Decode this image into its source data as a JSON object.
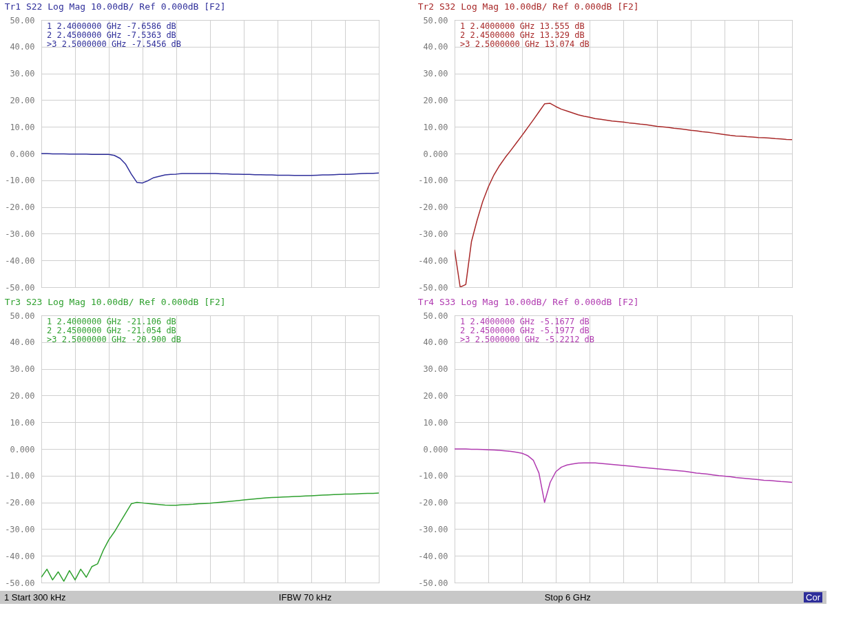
{
  "chart_data": [
    {
      "type": "line",
      "title": "Tr1 S22 Log Mag 10.00dB/ Ref 0.000dB [F2]",
      "categories": [
        null,
        null,
        null,
        null,
        null,
        null,
        null,
        null,
        null,
        null,
        null,
        null,
        null,
        null,
        null,
        null,
        null,
        null,
        null,
        null,
        null,
        null,
        null,
        null,
        null,
        null,
        null,
        null,
        null,
        null,
        null,
        null,
        null,
        null,
        null,
        null,
        null,
        null,
        null,
        null,
        null,
        null,
        null,
        null,
        null,
        null,
        null,
        null,
        null,
        null,
        null,
        null,
        null,
        null,
        null,
        null,
        null,
        null,
        null,
        null,
        null
      ],
      "ylim": [
        -50,
        50
      ],
      "yticks": [
        {
          "value": 50,
          "label": "50.00"
        },
        {
          "value": 40,
          "label": "40.00"
        },
        {
          "value": 30,
          "label": "30.00"
        },
        {
          "value": 20,
          "label": "20.00"
        },
        {
          "value": 10,
          "label": "10.00"
        },
        {
          "value": 0,
          "label": "0.000"
        },
        {
          "value": -10,
          "label": "-10.00"
        },
        {
          "value": -20,
          "label": "-20.00"
        },
        {
          "value": -30,
          "label": "-30.00"
        },
        {
          "value": -40,
          "label": "-40.00"
        },
        {
          "value": -50,
          "label": "-50.00"
        }
      ],
      "tick_labels": "y",
      "grid": true,
      "annotations": [
        " 1  2.4000000 GHz -7.6586 dB",
        " 2  2.4500000 GHz -7.5363 dB",
        ">3  2.5000000 GHz -7.5456 dB"
      ],
      "series": [
        {
          "color": "#2e2e9a",
          "values": [
            0,
            0,
            -0.1,
            -0.1,
            -0.1,
            -0.2,
            -0.2,
            -0.2,
            -0.2,
            -0.3,
            -0.3,
            -0.3,
            -0.3,
            -0.7,
            -1.8,
            -4,
            -7.7,
            -10.8,
            -11,
            -10.1,
            -9,
            -8.5,
            -8,
            -7.8,
            -7.7,
            -7.5,
            -7.5,
            -7.5,
            -7.5,
            -7.5,
            -7.5,
            -7.5,
            -7.6,
            -7.6,
            -7.7,
            -7.7,
            -7.8,
            -7.8,
            -7.9,
            -7.9,
            -8,
            -8,
            -8.1,
            -8.1,
            -8.1,
            -8.2,
            -8.2,
            -8.2,
            -8.2,
            -8.1,
            -8,
            -8,
            -7.9,
            -7.8,
            -7.8,
            -7.7,
            -7.6,
            -7.5,
            -7.4,
            -7.4,
            -7.3
          ]
        }
      ]
    },
    {
      "type": "line",
      "title": "Tr2 S32 Log Mag 10.00dB/ Ref 0.000dB [F2]",
      "categories": [
        null,
        null,
        null,
        null,
        null,
        null,
        null,
        null,
        null,
        null,
        null,
        null,
        null,
        null,
        null,
        null,
        null,
        null,
        null,
        null,
        null,
        null,
        null,
        null,
        null,
        null,
        null,
        null,
        null,
        null,
        null,
        null,
        null,
        null,
        null,
        null,
        null,
        null,
        null,
        null,
        null,
        null,
        null,
        null,
        null,
        null,
        null,
        null,
        null,
        null,
        null,
        null,
        null,
        null,
        null,
        null,
        null,
        null,
        null,
        null,
        null
      ],
      "ylim": [
        -50,
        50
      ],
      "yticks": [
        {
          "value": 50,
          "label": "50.00"
        },
        {
          "value": 40,
          "label": "40.00"
        },
        {
          "value": 30,
          "label": "30.00"
        },
        {
          "value": 20,
          "label": "20.00"
        },
        {
          "value": 10,
          "label": "10.00"
        },
        {
          "value": 0,
          "label": "0.000"
        },
        {
          "value": -10,
          "label": "-10.00"
        },
        {
          "value": -20,
          "label": "-20.00"
        },
        {
          "value": -30,
          "label": "-30.00"
        },
        {
          "value": -40,
          "label": "-40.00"
        },
        {
          "value": -50,
          "label": "-50.00"
        }
      ],
      "tick_labels": "y",
      "grid": true,
      "annotations": [
        " 1  2.4000000 GHz  13.555 dB",
        " 2  2.4500000 GHz  13.329 dB",
        ">3  2.5000000 GHz  13.074 dB"
      ],
      "series": [
        {
          "color": "#a82828",
          "values": [
            -36,
            -50,
            -49,
            -33,
            -25,
            -18,
            -12.5,
            -8,
            -4.5,
            -1.5,
            1.2,
            4,
            6.8,
            9.7,
            12.6,
            15.6,
            18.6,
            18.8,
            17.6,
            16.6,
            15.9,
            15.2,
            14.5,
            14,
            13.6,
            13.1,
            12.8,
            12.5,
            12.2,
            12,
            11.8,
            11.5,
            11.3,
            11,
            10.8,
            10.5,
            10.2,
            10,
            9.8,
            9.5,
            9.3,
            9,
            8.7,
            8.5,
            8.2,
            8,
            7.7,
            7.4,
            7.1,
            6.8,
            6.6,
            6.5,
            6.3,
            6.2,
            6,
            5.9,
            5.8,
            5.6,
            5.5,
            5.3,
            5.2
          ]
        }
      ]
    },
    {
      "type": "line",
      "title": "Tr3 S23 Log Mag 10.00dB/ Ref 0.000dB [F2]",
      "categories": [
        null,
        null,
        null,
        null,
        null,
        null,
        null,
        null,
        null,
        null,
        null,
        null,
        null,
        null,
        null,
        null,
        null,
        null,
        null,
        null,
        null,
        null,
        null,
        null,
        null,
        null,
        null,
        null,
        null,
        null,
        null,
        null,
        null,
        null,
        null,
        null,
        null,
        null,
        null,
        null,
        null,
        null,
        null,
        null,
        null,
        null,
        null,
        null,
        null,
        null,
        null,
        null,
        null,
        null,
        null,
        null,
        null,
        null,
        null,
        null,
        null
      ],
      "ylim": [
        -50,
        50
      ],
      "yticks": [
        {
          "value": 50,
          "label": "50.00"
        },
        {
          "value": 40,
          "label": "40.00"
        },
        {
          "value": 30,
          "label": "30.00"
        },
        {
          "value": 20,
          "label": "20.00"
        },
        {
          "value": 10,
          "label": "10.00"
        },
        {
          "value": 0,
          "label": "0.000"
        },
        {
          "value": -10,
          "label": "-10.00"
        },
        {
          "value": -20,
          "label": "-20.00"
        },
        {
          "value": -30,
          "label": "-30.00"
        },
        {
          "value": -40,
          "label": "-40.00"
        },
        {
          "value": -50,
          "label": "-50.00"
        }
      ],
      "tick_labels": "y",
      "grid": true,
      "annotations": [
        " 1  2.4000000 GHz -21.106 dB",
        " 2  2.4500000 GHz -21.054 dB",
        ">3  2.5000000 GHz -20.900 dB",
        "1 Start 300 kHz"
      ],
      "series": [
        {
          "color": "#2ea02e",
          "values": [
            -48,
            -45,
            -49,
            -46,
            -49.5,
            -45.5,
            -49,
            -45,
            -48,
            -44,
            -43,
            -38,
            -34,
            -31,
            -27.5,
            -24,
            -20.5,
            -20,
            -20.2,
            -20.4,
            -20.6,
            -20.8,
            -21,
            -21.1,
            -21.1,
            -20.9,
            -20.8,
            -20.7,
            -20.5,
            -20.4,
            -20.3,
            -20.1,
            -19.9,
            -19.7,
            -19.5,
            -19.3,
            -19.1,
            -18.9,
            -18.7,
            -18.5,
            -18.3,
            -18.2,
            -18.1,
            -18,
            -17.9,
            -17.8,
            -17.7,
            -17.6,
            -17.5,
            -17.4,
            -17.3,
            -17.2,
            -17.1,
            -17,
            -16.9,
            -16.9,
            -16.8,
            -16.7,
            -16.6,
            -16.6,
            -16.5
          ]
        }
      ]
    },
    {
      "type": "line",
      "title": "Tr4 S33 Log Mag 10.00dB/ Ref 0.000dB [F2]",
      "categories": [
        null,
        null,
        null,
        null,
        null,
        null,
        null,
        null,
        null,
        null,
        null,
        null,
        null,
        null,
        null,
        null,
        null,
        null,
        null,
        null,
        null,
        null,
        null,
        null,
        null,
        null,
        null,
        null,
        null,
        null,
        null,
        null,
        null,
        null,
        null,
        null,
        null,
        null,
        null,
        null,
        null,
        null,
        null,
        null,
        null,
        null,
        null,
        null,
        null,
        null,
        null,
        null,
        null,
        null,
        null,
        null,
        null,
        null,
        null,
        null,
        null
      ],
      "ylim": [
        -50,
        50
      ],
      "yticks": [
        {
          "value": 50,
          "label": "50.00"
        },
        {
          "value": 40,
          "label": "40.00"
        },
        {
          "value": 30,
          "label": "30.00"
        },
        {
          "value": 20,
          "label": "20.00"
        },
        {
          "value": 10,
          "label": "10.00"
        },
        {
          "value": 0,
          "label": "0.000"
        },
        {
          "value": -10,
          "label": "-10.00"
        },
        {
          "value": -20,
          "label": "-20.00"
        },
        {
          "value": -30,
          "label": "-30.00"
        },
        {
          "value": -40,
          "label": "-40.00"
        },
        {
          "value": -50,
          "label": "-50.00"
        }
      ],
      "tick_labels": "y",
      "grid": true,
      "annotations": [
        " 1  2.4000000 GHz -5.1677 dB",
        " 2  2.4500000 GHz -5.1977 dB",
        ">3  2.5000000 GHz -5.2212 dB",
        "IFBW 70 kHz",
        "Stop 6 GHz",
        "Cor"
      ],
      "series": [
        {
          "color": "#b03ab0",
          "values": [
            0,
            0,
            0,
            -0.1,
            -0.1,
            -0.2,
            -0.3,
            -0.4,
            -0.5,
            -0.7,
            -0.9,
            -1.2,
            -1.6,
            -2.5,
            -4.2,
            -9,
            -20,
            -12.5,
            -8.5,
            -6.8,
            -6,
            -5.6,
            -5.3,
            -5.2,
            -5.2,
            -5.2,
            -5.4,
            -5.6,
            -5.8,
            -6,
            -6.2,
            -6.4,
            -6.6,
            -6.8,
            -7,
            -7.2,
            -7.4,
            -7.6,
            -7.8,
            -8,
            -8.2,
            -8.4,
            -8.7,
            -9,
            -9.2,
            -9.4,
            -9.7,
            -10,
            -10.2,
            -10.4,
            -10.7,
            -10.9,
            -11.1,
            -11.3,
            -11.5,
            -11.7,
            -11.8,
            -12,
            -12.2,
            -12.3,
            -12.5
          ]
        }
      ]
    }
  ]
}
